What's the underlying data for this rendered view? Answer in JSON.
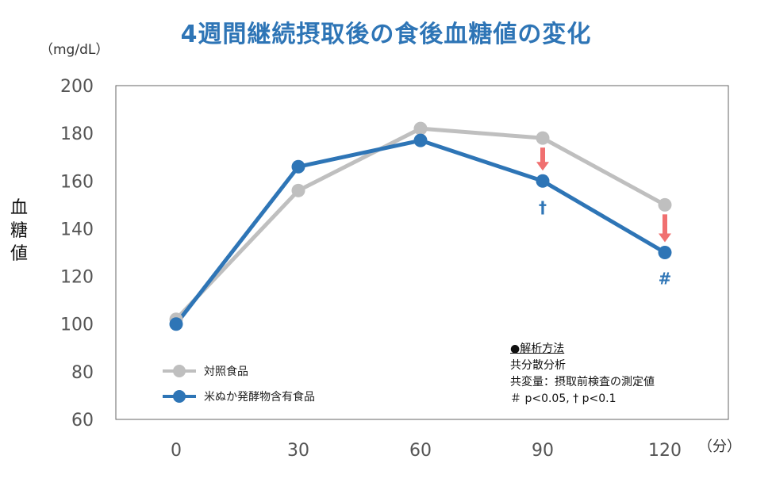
{
  "chart_data": {
    "type": "line",
    "title": "4週間継続摂取後の食後血糖値の変化",
    "y_unit": "（mg/dL）",
    "ylabel": "血\n糖\n値",
    "x_unit": "（分）",
    "x": [
      0,
      30,
      60,
      90,
      120
    ],
    "ylim": [
      60,
      200
    ],
    "yticks": [
      60,
      80,
      100,
      120,
      140,
      160,
      180,
      200
    ],
    "series": [
      {
        "name": "対照食品",
        "values": [
          102,
          156,
          182,
          178,
          150
        ],
        "color": "#bfbfbf"
      },
      {
        "name": "米ぬか発酵物含有食品",
        "values": [
          100,
          166,
          177,
          160,
          130
        ],
        "color": "#2e75b6"
      }
    ],
    "annotations": [
      {
        "x": 90,
        "text": "†",
        "color": "#2e75b6"
      },
      {
        "x": 120,
        "text": "#",
        "color": "#2e75b6"
      }
    ],
    "arrow_color": "#f07070",
    "grid": false
  },
  "notes": {
    "heading": "●解析方法",
    "lines": [
      "共分散分析",
      "共変量：摂取前検査の測定値",
      "＃ p<0.05, † p<0.1"
    ]
  }
}
